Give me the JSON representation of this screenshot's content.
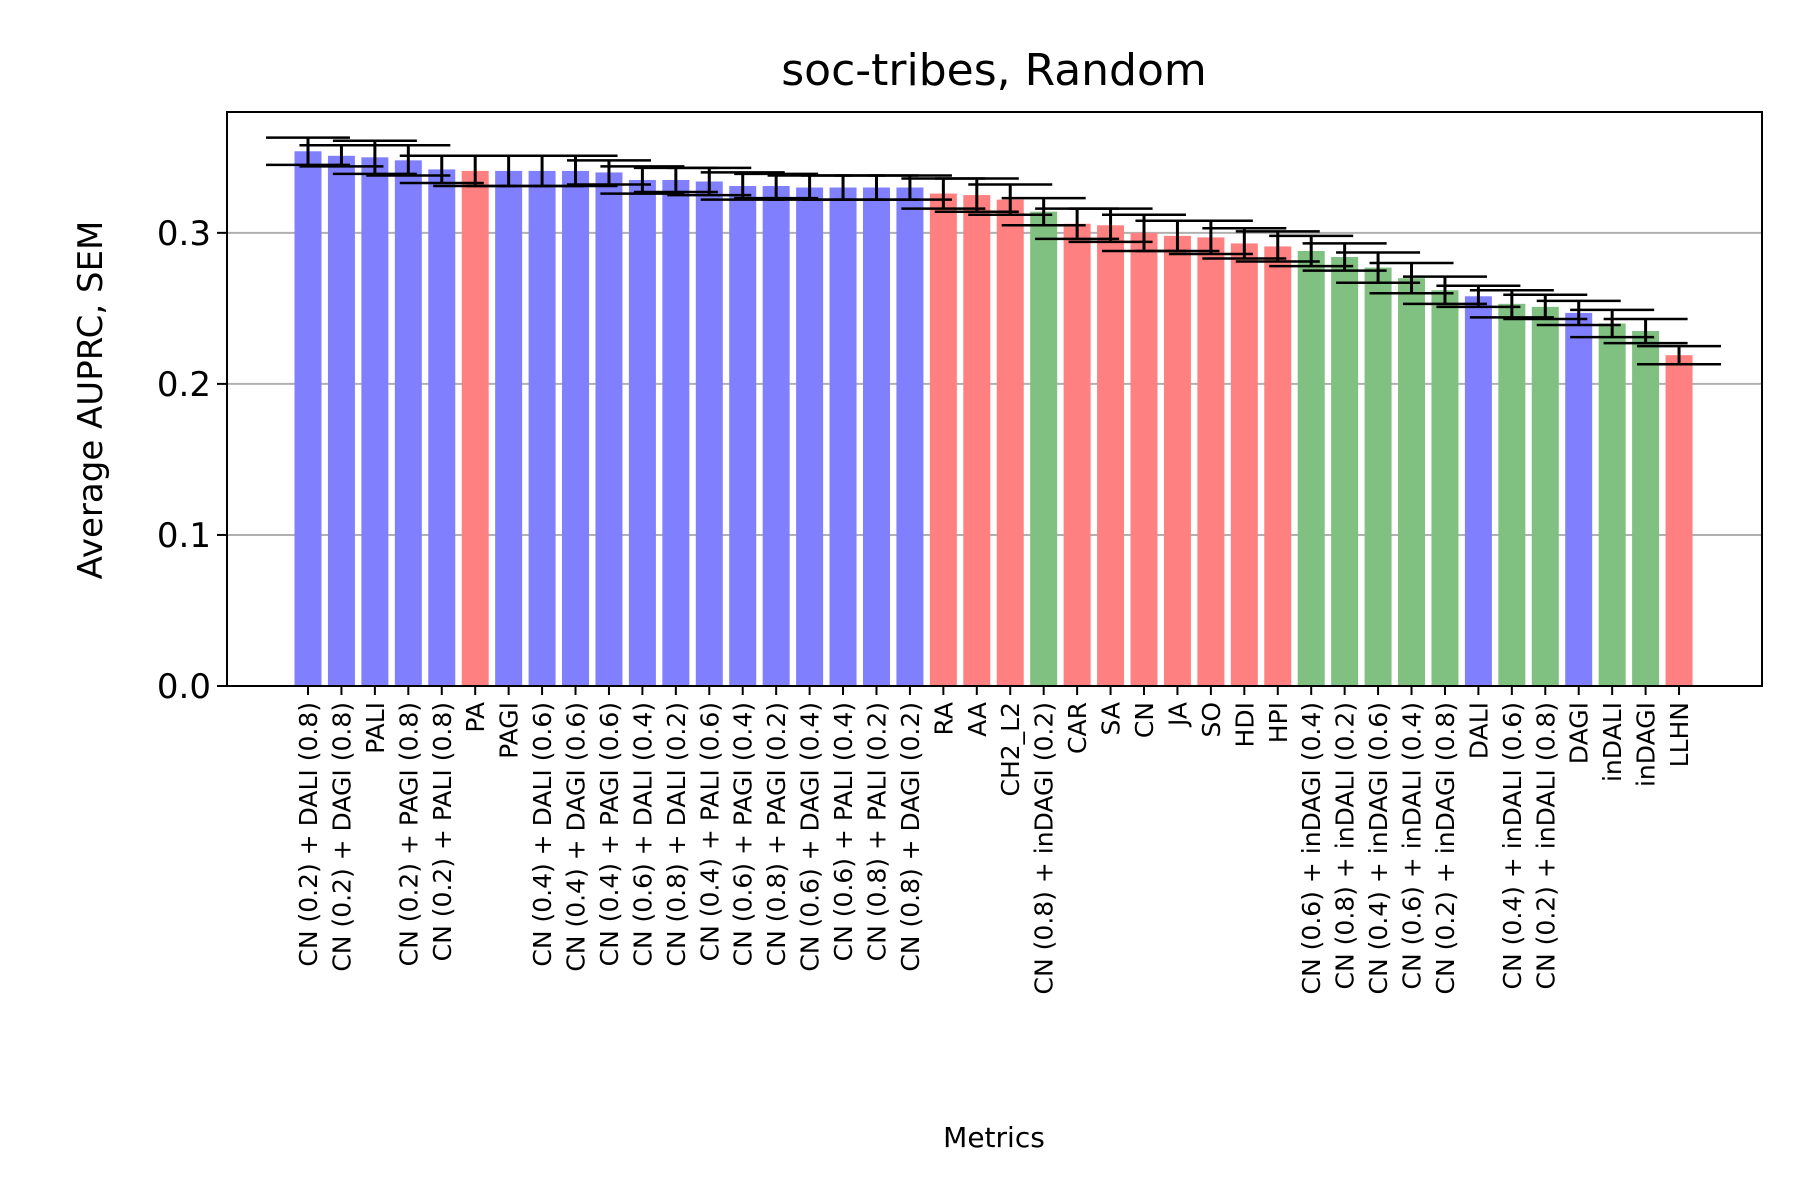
{
  "chart_data": {
    "type": "bar",
    "title": "soc-tribes, Random",
    "xlabel": "Metrics",
    "ylabel": "Average AUPRC, SEM",
    "ylim": [
      0,
      0.38
    ],
    "yticks": [
      "0.0",
      "0.1",
      "0.2",
      "0.3"
    ],
    "grid": "y",
    "colors": {
      "blue": "#8080ff",
      "red": "#ff8080",
      "green": "#80c080",
      "error": "#000000",
      "grid": "#b0b0b0"
    },
    "categories": [
      "CN (0.2) + DALI (0.8)",
      "CN (0.2) + DAGI (0.8)",
      "PALI",
      "CN (0.2) + PAGI (0.8)",
      "CN (0.2) + PALI (0.8)",
      "PA",
      "PAGI",
      "CN (0.4) + DALI (0.6)",
      "CN (0.4) + DAGI (0.6)",
      "CN (0.4) + PAGI (0.6)",
      "CN (0.6) + DALI (0.4)",
      "CN (0.8) + DALI (0.2)",
      "CN (0.4) + PALI (0.6)",
      "CN (0.6) + PAGI (0.4)",
      "CN (0.8) + PAGI (0.2)",
      "CN (0.6) + DAGI (0.4)",
      "CN (0.6) + PALI (0.4)",
      "CN (0.8) + PALI (0.2)",
      "CN (0.8) + DAGI (0.2)",
      "RA",
      "AA",
      "CH2_L2",
      "CN (0.8) + inDAGI (0.2)",
      "CAR",
      "SA",
      "CN",
      "JA",
      "SO",
      "HDI",
      "HPI",
      "CN (0.6) + inDAGI (0.4)",
      "CN (0.8) + inDALI (0.2)",
      "CN (0.4) + inDAGI (0.6)",
      "CN (0.6) + inDALI (0.4)",
      "CN (0.2) + inDAGI (0.8)",
      "DALI",
      "CN (0.4) + inDALI (0.6)",
      "CN (0.2) + inDALI (0.8)",
      "DAGI",
      "inDALI",
      "inDAGI",
      "LLHN"
    ],
    "values": [
      0.354,
      0.351,
      0.35,
      0.348,
      0.342,
      0.341,
      0.341,
      0.341,
      0.341,
      0.34,
      0.335,
      0.335,
      0.334,
      0.331,
      0.331,
      0.33,
      0.33,
      0.33,
      0.33,
      0.326,
      0.325,
      0.322,
      0.314,
      0.306,
      0.305,
      0.3,
      0.298,
      0.297,
      0.293,
      0.291,
      0.288,
      0.284,
      0.277,
      0.27,
      0.262,
      0.258,
      0.253,
      0.251,
      0.247,
      0.24,
      0.235,
      0.219
    ],
    "errors": [
      0.009,
      0.007,
      0.011,
      0.01,
      0.009,
      0.01,
      0.01,
      0.01,
      0.01,
      0.008,
      0.009,
      0.008,
      0.009,
      0.009,
      0.008,
      0.008,
      0.008,
      0.008,
      0.008,
      0.01,
      0.011,
      0.01,
      0.009,
      0.01,
      0.011,
      0.012,
      0.01,
      0.011,
      0.01,
      0.01,
      0.01,
      0.009,
      0.01,
      0.01,
      0.009,
      0.007,
      0.009,
      0.008,
      0.008,
      0.009,
      0.008,
      0.006
    ],
    "series_colors": [
      "blue",
      "blue",
      "blue",
      "blue",
      "blue",
      "red",
      "blue",
      "blue",
      "blue",
      "blue",
      "blue",
      "blue",
      "blue",
      "blue",
      "blue",
      "blue",
      "blue",
      "blue",
      "blue",
      "red",
      "red",
      "red",
      "green",
      "red",
      "red",
      "red",
      "red",
      "red",
      "red",
      "red",
      "green",
      "green",
      "green",
      "green",
      "green",
      "blue",
      "green",
      "green",
      "blue",
      "green",
      "green",
      "red"
    ]
  }
}
